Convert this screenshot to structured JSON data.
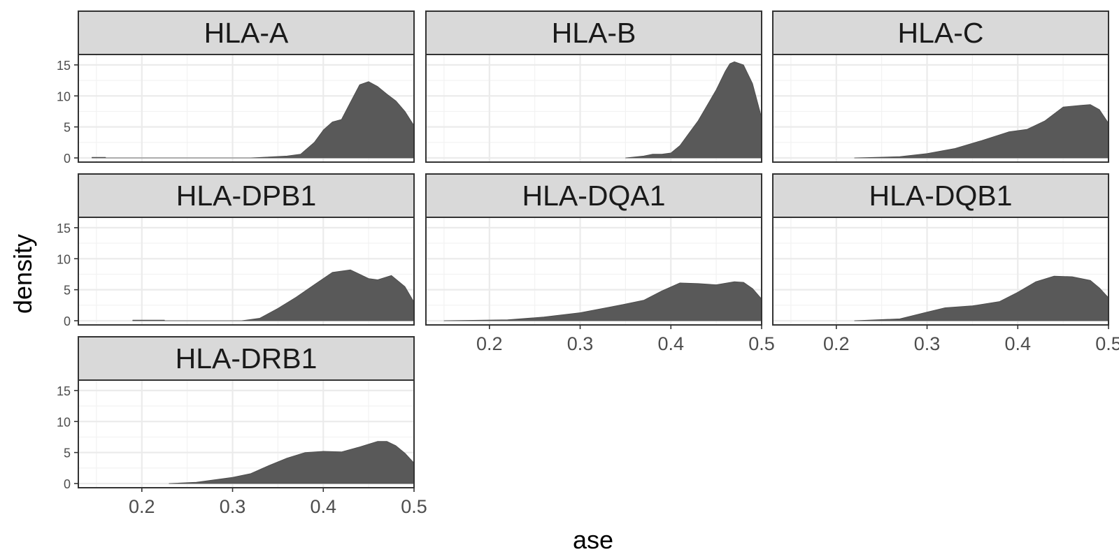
{
  "chart_data": {
    "type": "area",
    "subtype": "faceted density",
    "xlabel": "ase",
    "ylabel": "density",
    "xlim": [
      0.13,
      0.5
    ],
    "ylim": [
      0,
      16
    ],
    "xticks": [
      0.2,
      0.3,
      0.4,
      0.5
    ],
    "xtick_labels": [
      "0.2",
      "0.3",
      "0.4",
      "0.5"
    ],
    "yticks": [
      0,
      5,
      10,
      15
    ],
    "ytick_labels": [
      "0",
      "5",
      "10",
      "15"
    ],
    "grid": true,
    "theme": "bw",
    "fill_color": "#595959",
    "strip_color": "#d9d9d9",
    "facets": [
      {
        "name": "HLA-A",
        "x": [
          0.145,
          0.16,
          0.16,
          0.32,
          0.34,
          0.36,
          0.375,
          0.39,
          0.4,
          0.41,
          0.42,
          0.43,
          0.44,
          0.45,
          0.46,
          0.47,
          0.48,
          0.49,
          0.5
        ],
        "y": [
          0.1,
          0.1,
          0,
          0,
          0.15,
          0.3,
          0.6,
          2.5,
          4.5,
          5.8,
          6.2,
          9.0,
          11.8,
          12.3,
          11.5,
          10.3,
          9.2,
          7.5,
          5.2
        ]
      },
      {
        "name": "HLA-B",
        "x": [
          0.35,
          0.37,
          0.38,
          0.39,
          0.4,
          0.41,
          0.42,
          0.43,
          0.44,
          0.45,
          0.46,
          0.465,
          0.47,
          0.48,
          0.49,
          0.5
        ],
        "y": [
          0,
          0.3,
          0.6,
          0.6,
          0.8,
          2.0,
          4.0,
          6.0,
          8.5,
          11.0,
          14.0,
          15.2,
          15.5,
          15.0,
          12.0,
          6.5
        ]
      },
      {
        "name": "HLA-C",
        "x": [
          0.22,
          0.27,
          0.3,
          0.33,
          0.36,
          0.39,
          0.41,
          0.43,
          0.45,
          0.47,
          0.48,
          0.49,
          0.5
        ],
        "y": [
          0,
          0.2,
          0.7,
          1.5,
          2.8,
          4.2,
          4.6,
          6.0,
          8.2,
          8.5,
          8.6,
          7.8,
          5.6
        ]
      },
      {
        "name": "HLA-DPB1",
        "x": [
          0.19,
          0.225,
          0.225,
          0.31,
          0.33,
          0.35,
          0.37,
          0.39,
          0.41,
          0.43,
          0.45,
          0.46,
          0.475,
          0.49,
          0.5
        ],
        "y": [
          0.1,
          0.1,
          0,
          0,
          0.4,
          2.0,
          3.8,
          5.8,
          7.8,
          8.2,
          6.8,
          6.6,
          7.3,
          5.5,
          3.0
        ]
      },
      {
        "name": "HLA-DQA1",
        "x": [
          0.15,
          0.22,
          0.26,
          0.3,
          0.34,
          0.37,
          0.39,
          0.41,
          0.43,
          0.45,
          0.47,
          0.48,
          0.49,
          0.5
        ],
        "y": [
          0,
          0.15,
          0.6,
          1.3,
          2.4,
          3.3,
          4.8,
          6.1,
          6.0,
          5.8,
          6.3,
          6.2,
          5.2,
          3.5
        ]
      },
      {
        "name": "HLA-DQB1",
        "x": [
          0.22,
          0.27,
          0.3,
          0.32,
          0.35,
          0.38,
          0.4,
          0.42,
          0.44,
          0.46,
          0.48,
          0.49,
          0.5
        ],
        "y": [
          0,
          0.3,
          1.4,
          2.1,
          2.4,
          3.1,
          4.6,
          6.3,
          7.2,
          7.1,
          6.5,
          5.3,
          3.7
        ]
      },
      {
        "name": "HLA-DRB1",
        "x": [
          0.23,
          0.26,
          0.28,
          0.3,
          0.32,
          0.34,
          0.36,
          0.38,
          0.4,
          0.42,
          0.44,
          0.46,
          0.47,
          0.48,
          0.49,
          0.5
        ],
        "y": [
          0,
          0.2,
          0.6,
          1.0,
          1.6,
          2.9,
          4.1,
          5.0,
          5.2,
          5.1,
          5.9,
          6.8,
          6.8,
          6.1,
          4.9,
          3.3
        ]
      }
    ]
  }
}
